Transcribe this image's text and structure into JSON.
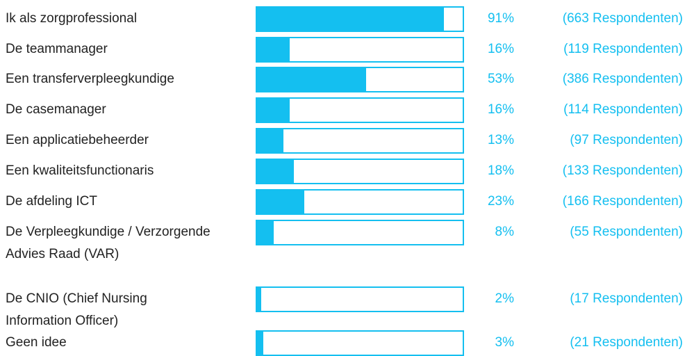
{
  "chart_data": {
    "type": "bar",
    "orientation": "horizontal",
    "color": "#14bff0",
    "categories": [
      "Ik als zorgprofessional",
      "De teammanager",
      "Een transferverpleegkundige",
      "De casemanager",
      "Een applicatiebeheerder",
      "Een kwaliteitsfunctionaris",
      "De afdeling ICT",
      "De Verpleegkundige / Verzorgende Advies Raad (VAR)",
      "De CNIO (Chief Nursing Information Officer)",
      "Geen idee"
    ],
    "values": [
      91,
      16,
      53,
      16,
      13,
      18,
      23,
      8,
      2,
      3
    ],
    "value_labels": [
      "91%",
      "16%",
      "53%",
      "16%",
      "13%",
      "18%",
      "23%",
      "8%",
      "2%",
      "3%"
    ],
    "respondent_labels": [
      "(663 Respondenten)",
      "(119 Respondenten)",
      "(386 Respondenten)",
      "(114 Respondenten)",
      "(97 Respondenten)",
      "(133 Respondenten)",
      "(166 Respondenten)",
      "(55 Respondenten)",
      "(17 Respondenten)",
      "(21 Respondenten)"
    ],
    "xlim": [
      0,
      100
    ]
  }
}
